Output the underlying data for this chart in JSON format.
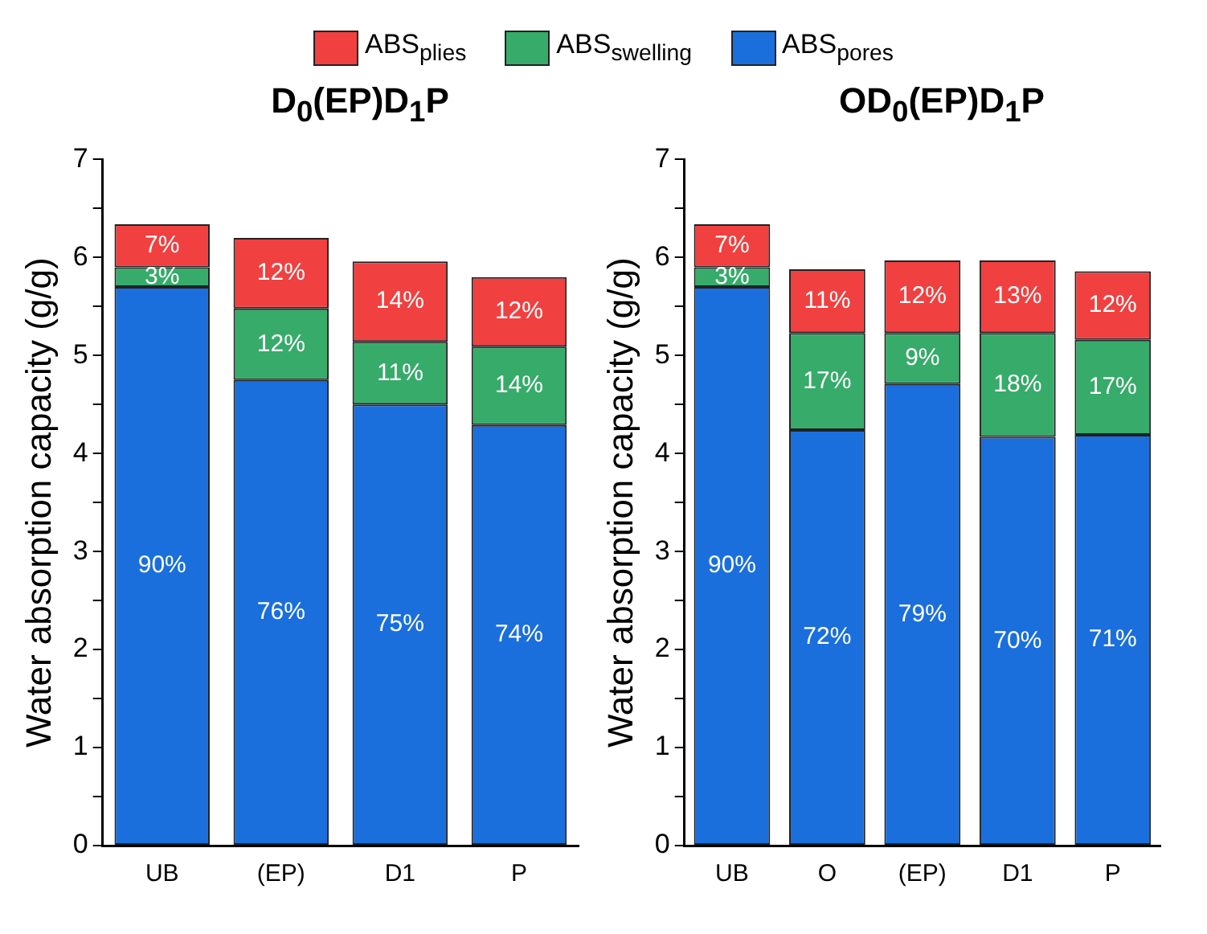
{
  "chart_data": [
    {
      "type": "bar",
      "title": "D$_{0}$(EP)D$_{1}$P",
      "ylabel": "Water absorption capacity (g/g)",
      "categories": [
        "UB",
        "(EP)",
        "D1",
        "P"
      ],
      "stacked": true,
      "legend": "top",
      "grid": false,
      "ylim": [
        0,
        7
      ],
      "yticks": [
        0,
        {
          "value": 0.5,
          "label": null
        },
        1,
        {
          "value": 1.5,
          "label": null
        },
        2,
        {
          "value": 2.5,
          "label": null
        },
        3,
        {
          "value": 3.5,
          "label": null
        },
        4,
        {
          "value": 4.5,
          "label": null
        },
        5,
        {
          "value": 5.5,
          "label": null
        },
        6,
        {
          "value": 6.5,
          "label": null
        },
        7
      ],
      "series": [
        {
          "name": "ABS$_{pores}$",
          "color": "#1a6fdc",
          "values": [
            5.7,
            4.75,
            4.5,
            4.29
          ]
        },
        {
          "name": "ABS$_{swelling}$",
          "color": "#36ab6a",
          "values": [
            0.2,
            0.73,
            0.64,
            0.8
          ]
        },
        {
          "name": "ABS$_{plies}$",
          "color": "#f04040",
          "values": [
            0.44,
            0.72,
            0.82,
            0.71
          ]
        }
      ],
      "annotations": [
        "90%",
        "76%",
        "75%",
        "74%",
        "3%",
        "12%",
        "11%",
        "14%",
        "7%",
        "12%",
        "14%",
        "12%"
      ]
    },
    {
      "type": "bar",
      "title": "OD$_{0}$(EP)D$_{1}$P",
      "ylabel": "Water absorption capacity (g/g)",
      "categories": [
        "UB",
        "O",
        "(EP)",
        "D1",
        "P"
      ],
      "stacked": true,
      "grid": false,
      "ylim": [
        0,
        7
      ],
      "yticks": [
        0,
        {
          "value": 0.5,
          "label": null
        },
        1,
        {
          "value": 1.5,
          "label": null
        },
        2,
        {
          "value": 2.5,
          "label": null
        },
        3,
        {
          "value": 3.5,
          "label": null
        },
        4,
        {
          "value": 4.5,
          "label": null
        },
        5,
        {
          "value": 5.5,
          "label": null
        },
        6,
        {
          "value": 6.5,
          "label": null
        },
        7
      ],
      "series": [
        {
          "color": "#1a6fdc",
          "values": [
            5.7,
            4.24,
            4.71,
            4.17,
            4.19
          ]
        },
        {
          "color": "#36ab6a",
          "values": [
            0.2,
            0.99,
            0.52,
            1.06,
            0.97
          ]
        },
        {
          "color": "#f04040",
          "values": [
            0.44,
            0.65,
            0.74,
            0.74,
            0.7
          ]
        }
      ],
      "annotations": [
        "90%",
        "72%",
        "79%",
        "70%",
        "71%",
        "3%",
        "17%",
        "9%",
        "18%",
        "17%",
        "7%",
        "11%",
        "12%",
        "13%",
        "12%"
      ]
    }
  ]
}
